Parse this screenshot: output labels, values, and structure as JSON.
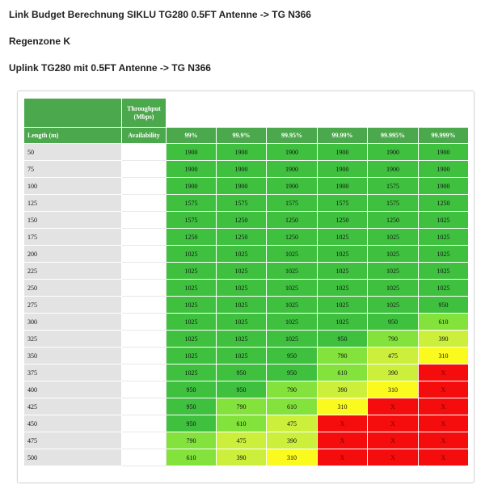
{
  "headings": {
    "title": "Link Budget Berechnung SIKLU TG280 0.5FT Antenne -> TG N366",
    "zone": "Regenzone K",
    "uplink": "Uplink TG280 mit 0.5FT Antenne -> TG N366"
  },
  "table": {
    "throughput_label": "Throughput (Mbps)",
    "length_label": "Length (m)",
    "availability_label": "Availability",
    "columns": [
      "99%",
      "99.9%",
      "99.95%",
      "99.99%",
      "99.995%",
      "99.999%"
    ],
    "rows": [
      {
        "length": "50",
        "values": [
          "1900",
          "1900",
          "1900",
          "1900",
          "1900",
          "1900"
        ]
      },
      {
        "length": "75",
        "values": [
          "1900",
          "1900",
          "1900",
          "1900",
          "1900",
          "1900"
        ]
      },
      {
        "length": "100",
        "values": [
          "1900",
          "1900",
          "1900",
          "1900",
          "1575",
          "1900"
        ]
      },
      {
        "length": "125",
        "values": [
          "1575",
          "1575",
          "1575",
          "1575",
          "1575",
          "1250"
        ]
      },
      {
        "length": "150",
        "values": [
          "1575",
          "1250",
          "1250",
          "1250",
          "1250",
          "1025"
        ]
      },
      {
        "length": "175",
        "values": [
          "1250",
          "1250",
          "1250",
          "1025",
          "1025",
          "1025"
        ]
      },
      {
        "length": "200",
        "values": [
          "1025",
          "1025",
          "1025",
          "1025",
          "1025",
          "1025"
        ]
      },
      {
        "length": "225",
        "values": [
          "1025",
          "1025",
          "1025",
          "1025",
          "1025",
          "1025"
        ]
      },
      {
        "length": "250",
        "values": [
          "1025",
          "1025",
          "1025",
          "1025",
          "1025",
          "1025"
        ]
      },
      {
        "length": "275",
        "values": [
          "1025",
          "1025",
          "1025",
          "1025",
          "1025",
          "950"
        ]
      },
      {
        "length": "300",
        "values": [
          "1025",
          "1025",
          "1025",
          "1025",
          "950",
          "610"
        ]
      },
      {
        "length": "325",
        "values": [
          "1025",
          "1025",
          "1025",
          "950",
          "790",
          "390"
        ]
      },
      {
        "length": "350",
        "values": [
          "1025",
          "1025",
          "950",
          "790",
          "475",
          "310"
        ]
      },
      {
        "length": "375",
        "values": [
          "1025",
          "950",
          "950",
          "610",
          "390",
          "X"
        ]
      },
      {
        "length": "400",
        "values": [
          "950",
          "950",
          "790",
          "390",
          "310",
          "X"
        ]
      },
      {
        "length": "425",
        "values": [
          "950",
          "790",
          "610",
          "310",
          "X",
          "X"
        ]
      },
      {
        "length": "450",
        "values": [
          "950",
          "610",
          "475",
          "X",
          "X",
          "X"
        ]
      },
      {
        "length": "475",
        "values": [
          "790",
          "475",
          "390",
          "X",
          "X",
          "X"
        ]
      },
      {
        "length": "500",
        "values": [
          "610",
          "390",
          "310",
          "X",
          "X",
          "X"
        ]
      }
    ]
  },
  "colors": {
    "header_green": "#4ca84c",
    "good": "#3fc13f",
    "ok": "#84e23c",
    "fair": "#ccef3c",
    "low": "#fafa1e",
    "none": "#f50d0d"
  }
}
